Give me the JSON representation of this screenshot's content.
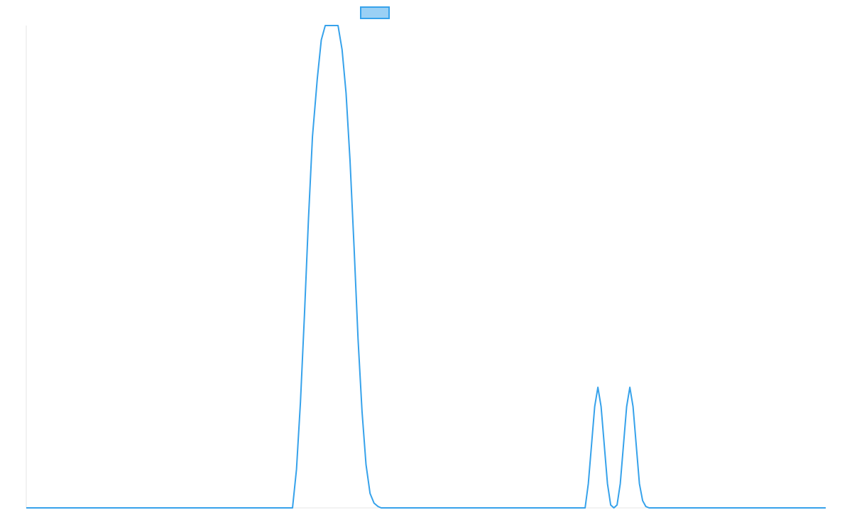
{
  "chart_data": {
    "type": "line",
    "title": "",
    "xlabel": "",
    "ylabel": "",
    "xlim": [
      0,
      100
    ],
    "ylim": [
      0,
      100
    ],
    "grid": false,
    "legend_placement": "top-center",
    "series": [
      {
        "color": "#36a2eb",
        "fill": "#9ad0f5",
        "x": [
          0,
          33.3,
          33.8,
          34.3,
          34.8,
          35.3,
          35.8,
          36.4,
          36.9,
          37.4,
          37.9,
          38.4,
          39.0,
          39.5,
          40.0,
          40.5,
          41.0,
          41.5,
          42.0,
          42.5,
          43.0,
          43.5,
          44.0,
          44.4,
          48.7,
          69.9,
          70.3,
          70.7,
          71.1,
          71.5,
          71.9,
          72.3,
          72.7,
          73.1,
          73.5,
          73.9,
          74.3,
          74.7,
          75.1,
          75.5,
          75.9,
          76.3,
          76.7,
          77.1,
          77.5,
          77.9,
          100
        ],
        "y": [
          0,
          0,
          8,
          22,
          40,
          60,
          77,
          89,
          97,
          100,
          100,
          100,
          100,
          95,
          86,
          72,
          54,
          35,
          20,
          9,
          3,
          1,
          0.3,
          0,
          0,
          0,
          5,
          13,
          21,
          25,
          21,
          13,
          5,
          0.6,
          0,
          0.6,
          5,
          13,
          21,
          25,
          21,
          13,
          5,
          1.5,
          0.3,
          0,
          0
        ]
      }
    ]
  }
}
